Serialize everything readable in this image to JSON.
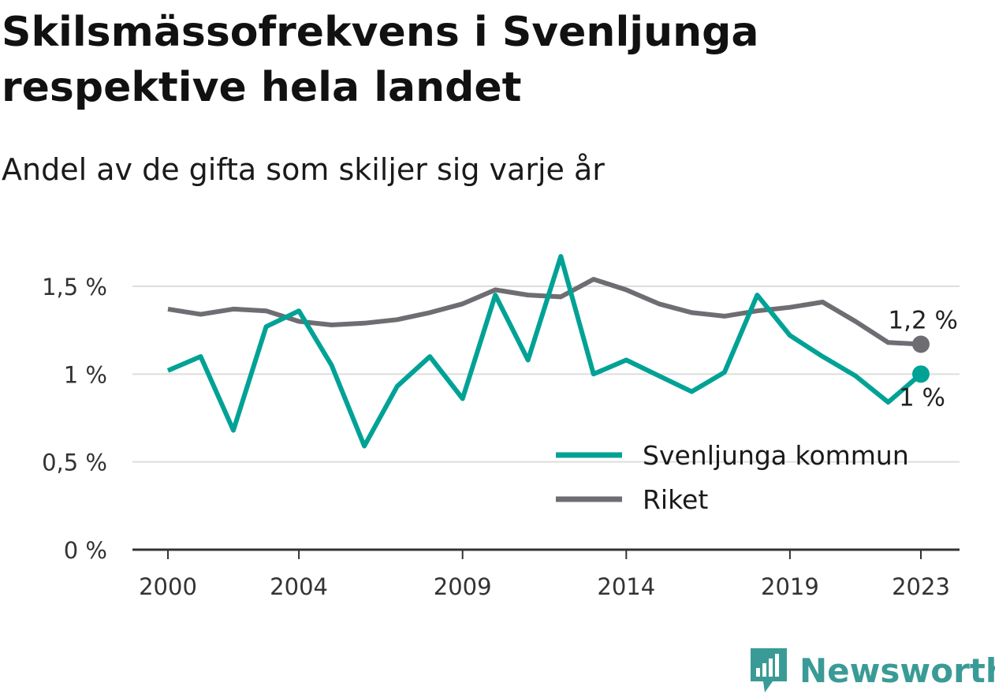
{
  "title": "Skilsmässofrekvens i Svenljunga respektive hela landet",
  "subtitle": "Andel av de gifta som skiljer sig varje år",
  "brand": "Newsworthy",
  "colors": {
    "svenljunga": "#00a295",
    "riket": "#6e6d72",
    "grid": "#dddddd",
    "axis": "#333333"
  },
  "chart_data": {
    "type": "line",
    "x": [
      2000,
      2001,
      2002,
      2003,
      2004,
      2005,
      2006,
      2007,
      2008,
      2009,
      2010,
      2011,
      2012,
      2013,
      2014,
      2015,
      2016,
      2017,
      2018,
      2019,
      2020,
      2021,
      2022,
      2023
    ],
    "x_ticks": [
      2000,
      2004,
      2009,
      2014,
      2019,
      2023
    ],
    "y_ticks": [
      0,
      0.5,
      1,
      1.5
    ],
    "y_tick_labels": [
      "0 %",
      "0,5 %",
      "1 %",
      "1,5 %"
    ],
    "ylim": [
      0,
      1.5
    ],
    "grid": true,
    "legend_position": "bottom-right",
    "series": [
      {
        "key": "svenljunga",
        "name": "Svenljunga kommun",
        "values": [
          1.02,
          1.1,
          0.68,
          1.27,
          1.36,
          1.05,
          0.59,
          0.93,
          1.1,
          0.86,
          1.45,
          1.08,
          1.67,
          1.0,
          1.08,
          0.99,
          0.9,
          1.01,
          1.45,
          1.22,
          1.1,
          0.99,
          0.84,
          1.0
        ],
        "end_label": "1 %"
      },
      {
        "key": "riket",
        "name": "Riket",
        "values": [
          1.37,
          1.34,
          1.37,
          1.36,
          1.3,
          1.28,
          1.29,
          1.31,
          1.35,
          1.4,
          1.48,
          1.45,
          1.44,
          1.54,
          1.48,
          1.4,
          1.35,
          1.33,
          1.36,
          1.38,
          1.41,
          1.3,
          1.18,
          1.17
        ],
        "end_label": "1,2 %"
      }
    ]
  }
}
